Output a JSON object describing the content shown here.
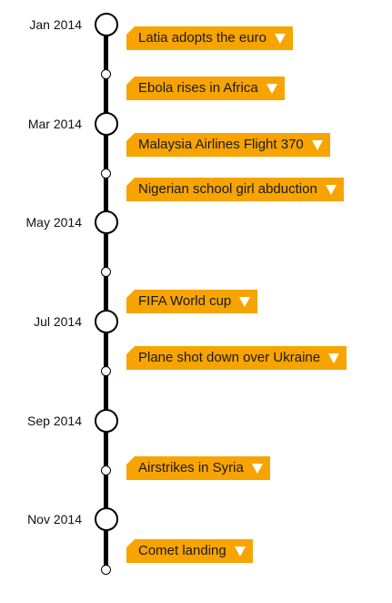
{
  "timeline": {
    "months": [
      {
        "label": "Jan 2014"
      },
      {
        "label": "Mar 2014"
      },
      {
        "label": "May 2014"
      },
      {
        "label": "Jul 2014"
      },
      {
        "label": "Sep 2014"
      },
      {
        "label": "Nov 2014"
      }
    ],
    "events": [
      {
        "label": "Latia adopts the euro",
        "icon": "chevron-down-icon"
      },
      {
        "label": "Ebola rises in Africa",
        "icon": "chevron-down-icon"
      },
      {
        "label": "Malaysia Airlines Flight 370",
        "icon": "chevron-down-icon"
      },
      {
        "label": "Nigerian school girl abduction",
        "icon": "chevron-down-icon"
      },
      {
        "label": "FIFA World cup",
        "icon": "chevron-down-icon"
      },
      {
        "label": "Plane shot down over Ukraine",
        "icon": "chevron-down-icon"
      },
      {
        "label": "Airstrikes in Syria",
        "icon": "chevron-down-icon"
      },
      {
        "label": "Comet landing",
        "icon": "chevron-down-icon"
      }
    ]
  },
  "colors": {
    "event_background": "#f7a400",
    "rail": "#000000",
    "node_fill": "#ffffff"
  }
}
